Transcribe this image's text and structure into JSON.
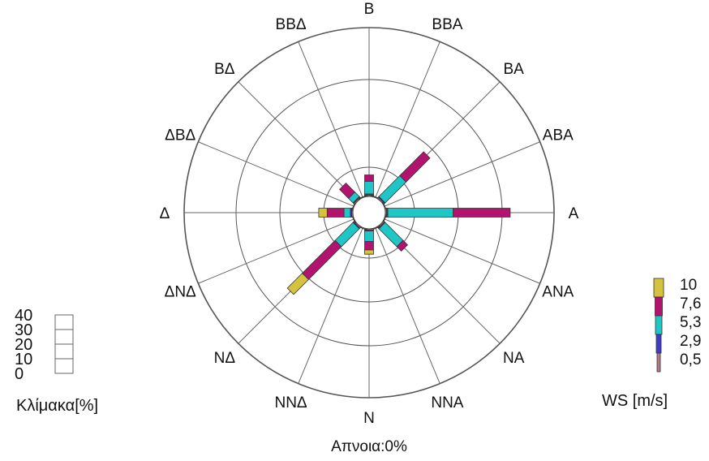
{
  "chart_data": {
    "type": "wind-rose",
    "directions": [
      "Β",
      "ΒΒΑ",
      "ΒΑ",
      "ΑΒΑ",
      "Α",
      "ΑΝΑ",
      "ΝΑ",
      "ΝΝΑ",
      "Ν",
      "ΝΝΔ",
      "ΝΔ",
      "ΔΝΔ",
      "Δ",
      "ΔΒΔ",
      "ΒΔ",
      "ΒΒΔ"
    ],
    "calm_label": "Απνοια:0%",
    "scale_label": "Κλίμακα[%]",
    "scale_ticks": [
      "0",
      "10",
      "20",
      "30",
      "40"
    ],
    "speed_legend_title": "WS [m/s]",
    "speed_classes": [
      {
        "label": "0,5",
        "color": "#b07a8a"
      },
      {
        "label": "2,9",
        "color": "#3d3dc8"
      },
      {
        "label": "5,3",
        "color": "#1fc6c6"
      },
      {
        "label": "7,6",
        "color": "#b3136e"
      },
      {
        "label": "10",
        "color": "#d6c23e"
      }
    ],
    "radial_max_percent": 40,
    "values_percent": {
      "Β": [
        0.3,
        0.3,
        3.0,
        1.5,
        0.0
      ],
      "ΒΒΑ": [
        0.2,
        0.0,
        0.0,
        0.0,
        0.0
      ],
      "ΒΑ": [
        0.3,
        0.2,
        7.0,
        8.0,
        0.0
      ],
      "ΑΒΑ": [
        0.2,
        0.0,
        0.0,
        0.0,
        0.0
      ],
      "Α": [
        0.3,
        0.3,
        15.5,
        13.5,
        0.0
      ],
      "ΑΝΑ": [
        0.2,
        0.0,
        0.0,
        0.0,
        0.0
      ],
      "ΝΑ": [
        0.3,
        0.2,
        6.0,
        1.5,
        0.0
      ],
      "ΝΝΑ": [
        0.2,
        0.0,
        0.0,
        0.0,
        0.0
      ],
      "Ν": [
        0.3,
        0.2,
        2.5,
        2.0,
        1.0
      ],
      "ΝΝΔ": [
        0.2,
        0.0,
        0.0,
        0.0,
        0.0
      ],
      "ΝΔ": [
        0.3,
        0.2,
        6.0,
        11.0,
        5.0
      ],
      "ΔΝΔ": [
        0.2,
        0.0,
        0.0,
        0.0,
        0.0
      ],
      "Δ": [
        0.3,
        0.3,
        1.5,
        4.0,
        2.0
      ],
      "ΔΒΔ": [
        0.2,
        0.0,
        0.0,
        0.0,
        0.0
      ],
      "ΒΔ": [
        0.3,
        0.2,
        1.5,
        3.0,
        0.0
      ],
      "ΒΒΔ": [
        0.2,
        0.0,
        0.0,
        0.0,
        0.0
      ]
    }
  }
}
